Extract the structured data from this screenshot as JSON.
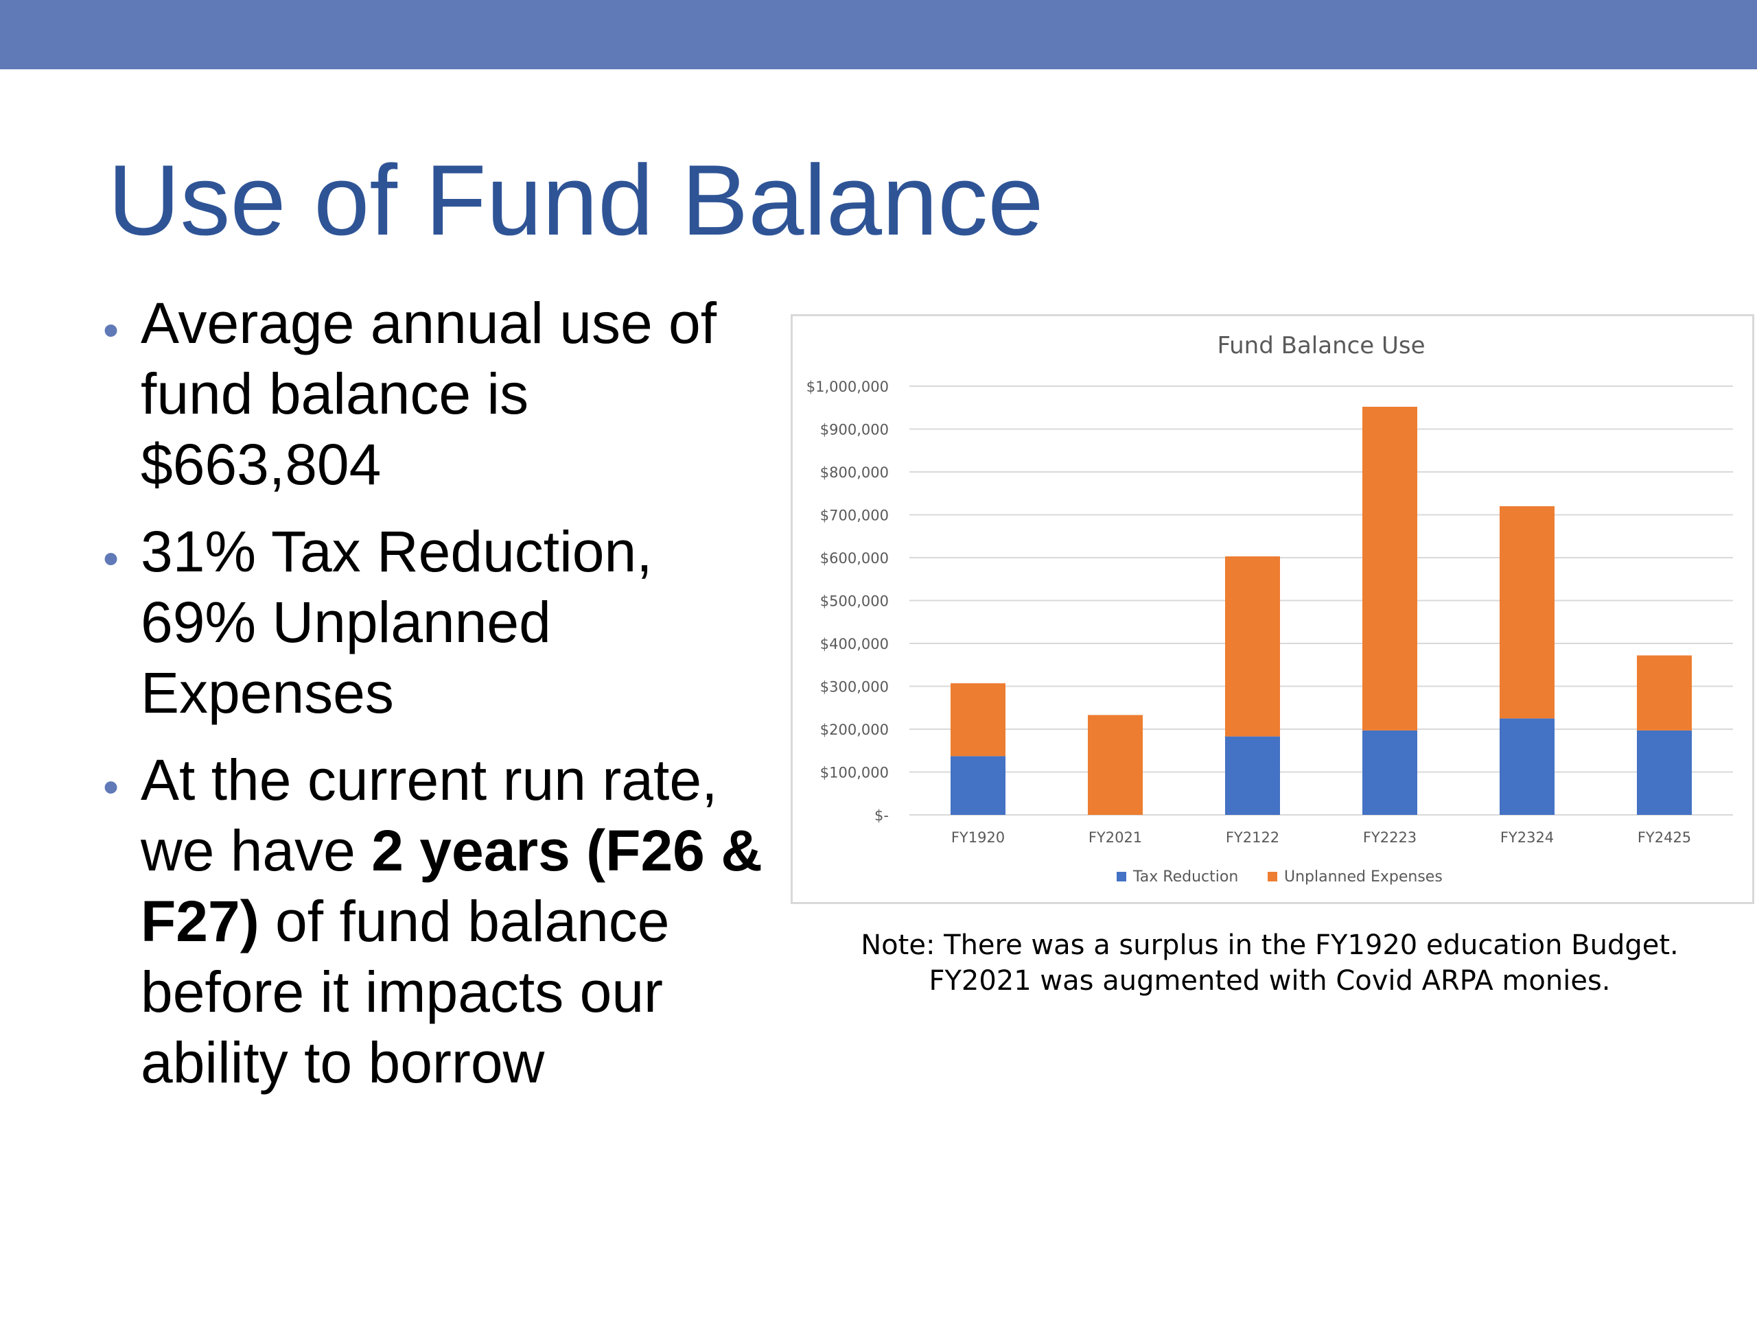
{
  "slide": {
    "title": "Use of Fund Balance",
    "bullets": [
      {
        "parts": [
          {
            "text": "Average annual use of fund balance is $663,804",
            "bold": false
          }
        ]
      },
      {
        "parts": [
          {
            "text": "31% Tax Reduction, 69% Unplanned Expenses",
            "bold": false
          }
        ]
      },
      {
        "parts": [
          {
            "text": "At the current run rate, we have ",
            "bold": false
          },
          {
            "text": "2 years (F26 & F27)",
            "bold": true
          },
          {
            "text": " of fund balance before it impacts our ability to borrow",
            "bold": false
          }
        ]
      }
    ],
    "note_line1": "Note:  There was a surplus in the FY1920 education Budget.",
    "note_line2": "FY2021 was augmented with Covid ARPA monies."
  },
  "colors": {
    "top_bar": "#6079b7",
    "title": "#2f5496",
    "bullet_marker": "#6079b7"
  },
  "chart_data": {
    "type": "bar",
    "stacked": true,
    "title": "Fund Balance Use",
    "xlabel": "",
    "ylabel": "",
    "categories": [
      "FY1920",
      "FY2021",
      "FY2122",
      "FY2223",
      "FY2324",
      "FY2425"
    ],
    "series": [
      {
        "name": "Tax Reduction",
        "color": "#4472c4",
        "values": [
          137000,
          0,
          183000,
          197000,
          225000,
          197000
        ]
      },
      {
        "name": "Unplanned Expenses",
        "color": "#ed7d31",
        "values": [
          170000,
          233000,
          420000,
          755000,
          495000,
          175000
        ]
      }
    ],
    "ylim": [
      0,
      1000000
    ],
    "yticks": [
      0,
      100000,
      200000,
      300000,
      400000,
      500000,
      600000,
      700000,
      800000,
      900000,
      1000000
    ],
    "ytick_labels": [
      "$-",
      "$100,000",
      "$200,000",
      "$300,000",
      "$400,000",
      "$500,000",
      "$600,000",
      "$700,000",
      "$800,000",
      "$900,000",
      "$1,000,000"
    ],
    "grid": true,
    "legend_position": "bottom"
  }
}
